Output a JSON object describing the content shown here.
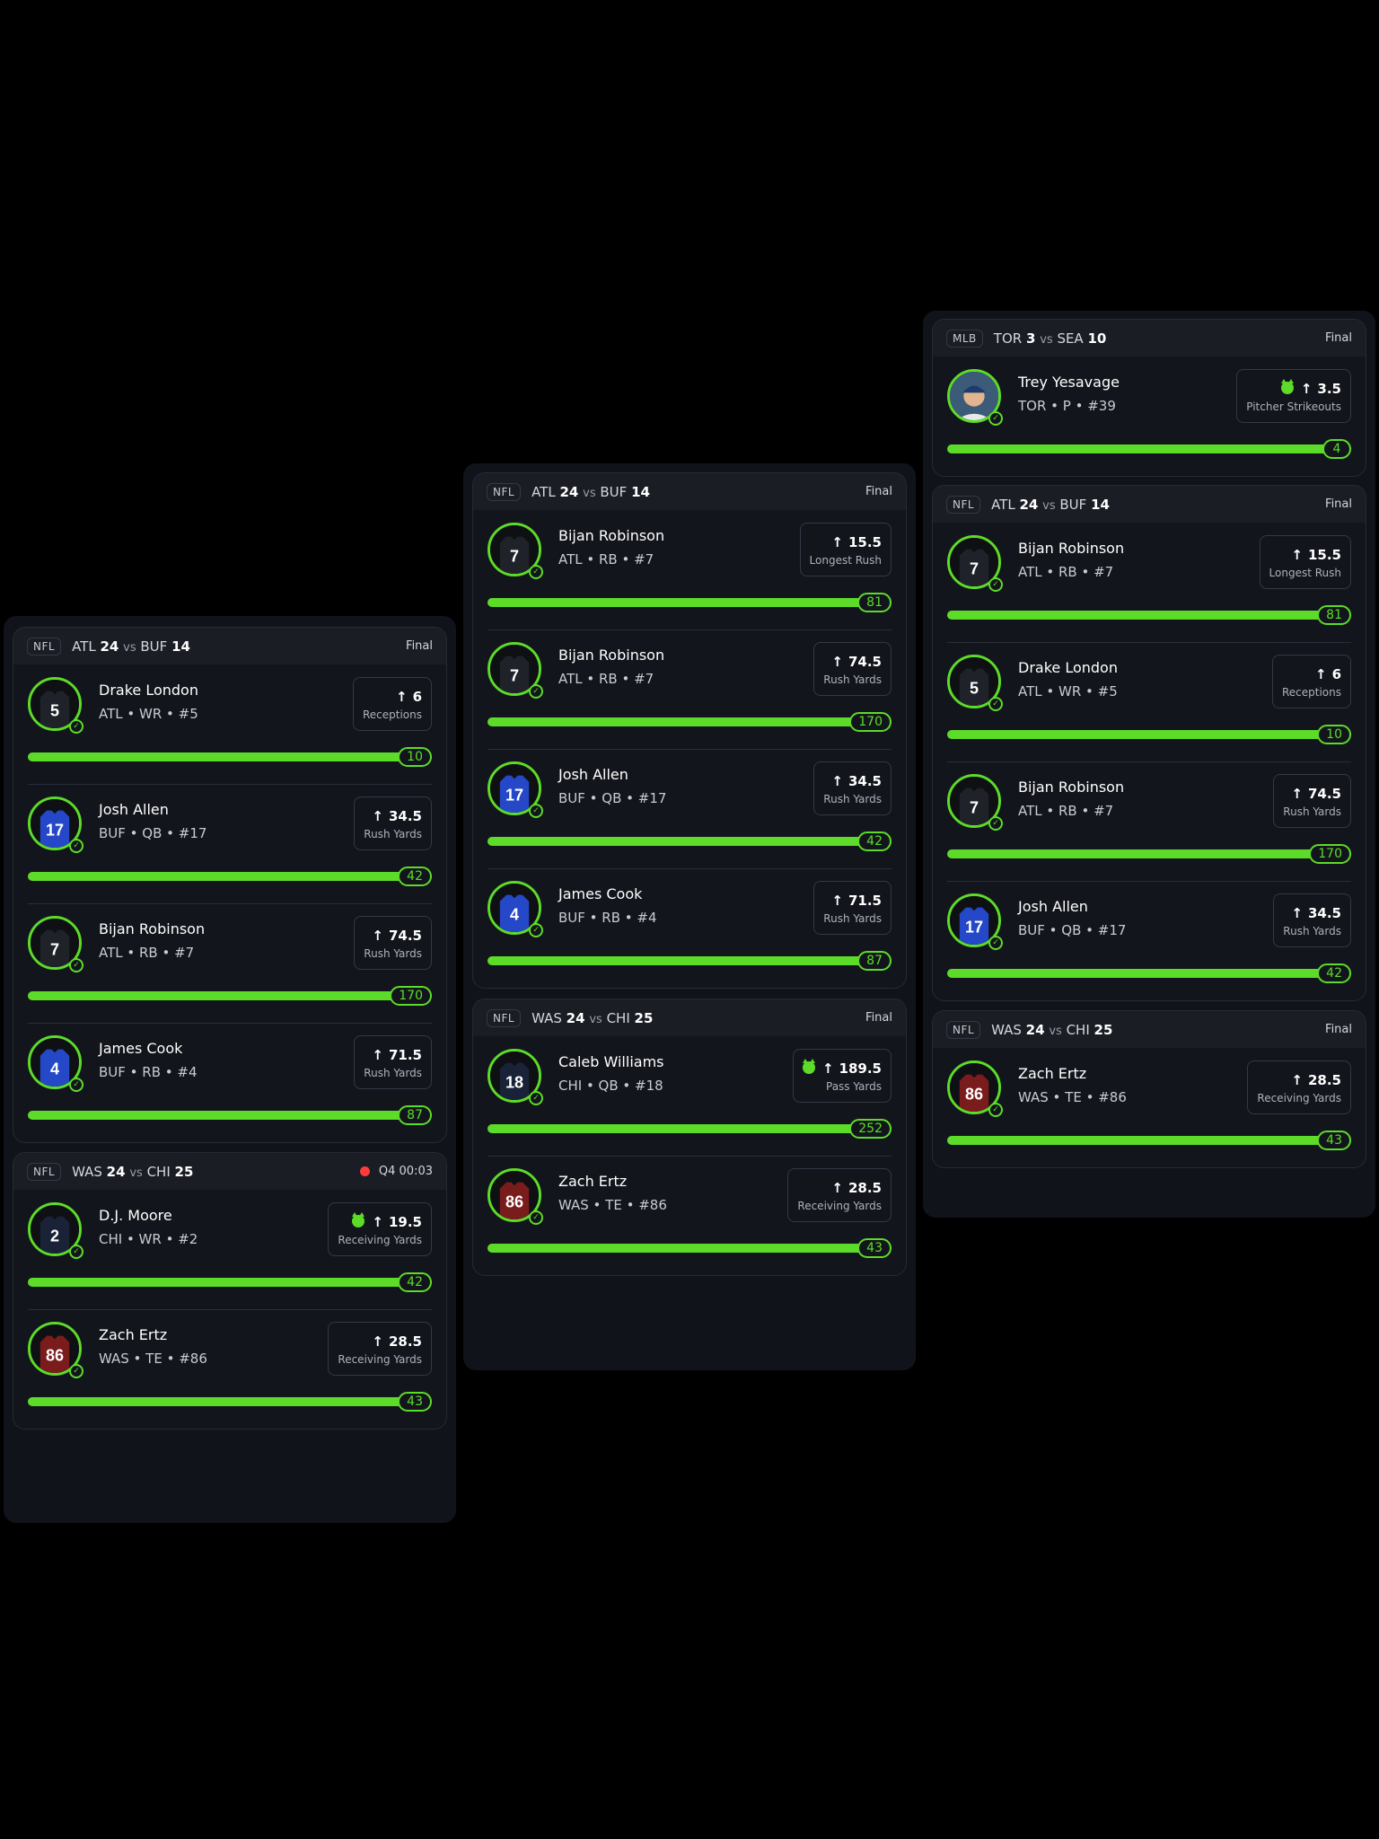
{
  "colors": {
    "accent": "#5cdc28",
    "live": "#ff3b3b",
    "background": "#000000",
    "panel": "#11131a"
  },
  "panels": [
    {
      "sections": [
        {
          "league": "NFL",
          "team1": "ATL",
          "score1": "24",
          "vs": "vs",
          "team2": "BUF",
          "score2": "14",
          "status": "Final",
          "live": false,
          "players": [
            {
              "name": "Drake London",
              "info": "ATL • WR • #5",
              "line": "6",
              "stat": "Receptions",
              "result": "10",
              "progress": 1.0,
              "jersey": "5",
              "jersey_color": "#1f2228",
              "hot": false
            },
            {
              "name": "Josh Allen",
              "info": "BUF • QB • #17",
              "line": "34.5",
              "stat": "Rush Yards",
              "result": "42",
              "progress": 1.0,
              "jersey": "17",
              "jersey_color": "#2448c8",
              "hot": false
            },
            {
              "name": "Bijan Robinson",
              "info": "ATL • RB • #7",
              "line": "74.5",
              "stat": "Rush Yards",
              "result": "170",
              "progress": 1.0,
              "jersey": "7",
              "jersey_color": "#1f2228",
              "hot": false
            },
            {
              "name": "James Cook",
              "info": "BUF • RB • #4",
              "line": "71.5",
              "stat": "Rush Yards",
              "result": "87",
              "progress": 1.0,
              "jersey": "4",
              "jersey_color": "#2448c8",
              "hot": false
            }
          ]
        },
        {
          "league": "NFL",
          "team1": "WAS",
          "score1": "24",
          "vs": "vs",
          "team2": "CHI",
          "score2": "25",
          "status": "Q4 00:03",
          "live": true,
          "players": [
            {
              "name": "D.J. Moore",
              "info": "CHI • WR • #2",
              "line": "19.5",
              "stat": "Receiving Yards",
              "result": "42",
              "progress": 1.0,
              "jersey": "2",
              "jersey_color": "#1a2238",
              "hot": true
            },
            {
              "name": "Zach Ertz",
              "info": "WAS • TE • #86",
              "line": "28.5",
              "stat": "Receiving Yards",
              "result": "43",
              "progress": 1.0,
              "jersey": "86",
              "jersey_color": "#7a1c1c",
              "hot": false
            }
          ]
        }
      ]
    },
    {
      "sections": [
        {
          "league": "NFL",
          "team1": "ATL",
          "score1": "24",
          "vs": "vs",
          "team2": "BUF",
          "score2": "14",
          "status": "Final",
          "live": false,
          "players": [
            {
              "name": "Bijan Robinson",
              "info": "ATL • RB • #7",
              "line": "15.5",
              "stat": "Longest Rush",
              "result": "81",
              "progress": 1.0,
              "jersey": "7",
              "jersey_color": "#1f2228",
              "hot": false
            },
            {
              "name": "Bijan Robinson",
              "info": "ATL • RB • #7",
              "line": "74.5",
              "stat": "Rush Yards",
              "result": "170",
              "progress": 1.0,
              "jersey": "7",
              "jersey_color": "#1f2228",
              "hot": false
            },
            {
              "name": "Josh Allen",
              "info": "BUF • QB • #17",
              "line": "34.5",
              "stat": "Rush Yards",
              "result": "42",
              "progress": 1.0,
              "jersey": "17",
              "jersey_color": "#2448c8",
              "hot": false
            },
            {
              "name": "James Cook",
              "info": "BUF • RB • #4",
              "line": "71.5",
              "stat": "Rush Yards",
              "result": "87",
              "progress": 1.0,
              "jersey": "4",
              "jersey_color": "#2448c8",
              "hot": false
            }
          ]
        },
        {
          "league": "NFL",
          "team1": "WAS",
          "score1": "24",
          "vs": "vs",
          "team2": "CHI",
          "score2": "25",
          "status": "Final",
          "live": false,
          "players": [
            {
              "name": "Caleb Williams",
              "info": "CHI • QB • #18",
              "line": "189.5",
              "stat": "Pass Yards",
              "result": "252",
              "progress": 1.0,
              "jersey": "18",
              "jersey_color": "#1a2238",
              "hot": true
            },
            {
              "name": "Zach Ertz",
              "info": "WAS • TE • #86",
              "line": "28.5",
              "stat": "Receiving Yards",
              "result": "43",
              "progress": 1.0,
              "jersey": "86",
              "jersey_color": "#7a1c1c",
              "hot": false
            }
          ]
        }
      ]
    },
    {
      "sections": [
        {
          "league": "MLB",
          "team1": "TOR",
          "score1": "3",
          "vs": "vs",
          "team2": "SEA",
          "score2": "10",
          "status": "Final",
          "live": false,
          "players": [
            {
              "name": "Trey Yesavage",
              "info": "TOR • P • #39",
              "line": "3.5",
              "stat": "Pitcher Strikeouts",
              "result": "4",
              "progress": 1.0,
              "jersey": "",
              "jersey_color": "photo",
              "hot": true
            }
          ]
        },
        {
          "league": "NFL",
          "team1": "ATL",
          "score1": "24",
          "vs": "vs",
          "team2": "BUF",
          "score2": "14",
          "status": "Final",
          "live": false,
          "players": [
            {
              "name": "Bijan Robinson",
              "info": "ATL • RB • #7",
              "line": "15.5",
              "stat": "Longest Rush",
              "result": "81",
              "progress": 1.0,
              "jersey": "7",
              "jersey_color": "#1f2228",
              "hot": false
            },
            {
              "name": "Drake London",
              "info": "ATL • WR • #5",
              "line": "6",
              "stat": "Receptions",
              "result": "10",
              "progress": 1.0,
              "jersey": "5",
              "jersey_color": "#1f2228",
              "hot": false
            },
            {
              "name": "Bijan Robinson",
              "info": "ATL • RB • #7",
              "line": "74.5",
              "stat": "Rush Yards",
              "result": "170",
              "progress": 1.0,
              "jersey": "7",
              "jersey_color": "#1f2228",
              "hot": false
            },
            {
              "name": "Josh Allen",
              "info": "BUF • QB • #17",
              "line": "34.5",
              "stat": "Rush Yards",
              "result": "42",
              "progress": 1.0,
              "jersey": "17",
              "jersey_color": "#2448c8",
              "hot": false
            }
          ]
        },
        {
          "league": "NFL",
          "team1": "WAS",
          "score1": "24",
          "vs": "vs",
          "team2": "CHI",
          "score2": "25",
          "status": "Final",
          "live": false,
          "players": [
            {
              "name": "Zach Ertz",
              "info": "WAS • TE • #86",
              "line": "28.5",
              "stat": "Receiving Yards",
              "result": "43",
              "progress": 1.0,
              "jersey": "86",
              "jersey_color": "#7a1c1c",
              "hot": false
            }
          ]
        }
      ]
    }
  ]
}
